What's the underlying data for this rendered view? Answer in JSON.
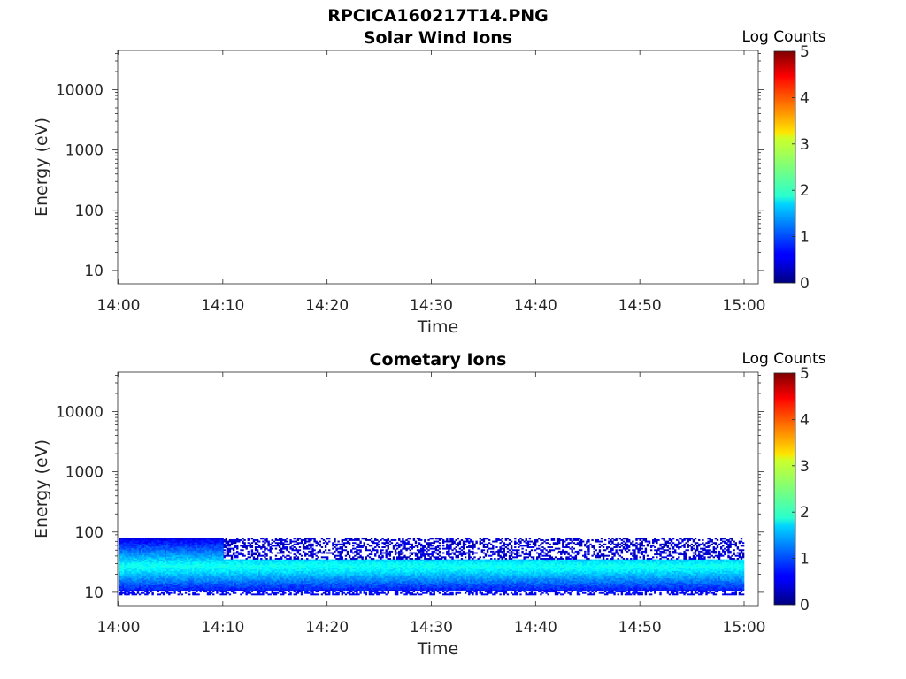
{
  "figure": {
    "title": "RPCICA160217T14.PNG"
  },
  "chart_data": [
    {
      "type": "heatmap",
      "title": "Solar Wind Ions",
      "xlabel": "Time",
      "ylabel": "Energy (eV)",
      "x_ticks": [
        "14:00",
        "14:10",
        "14:20",
        "14:30",
        "14:40",
        "14:50",
        "15:00"
      ],
      "xlim": [
        "14:00",
        "15:00"
      ],
      "y_scale": "log",
      "y_ticks": [
        10,
        100,
        1000,
        10000
      ],
      "y_tick_labels": [
        "10",
        "100",
        "1000",
        "10000"
      ],
      "ylim": [
        6,
        45000
      ],
      "colorbar": {
        "label": "Log Counts",
        "ticks": [
          "0",
          "1",
          "2",
          "3",
          "4",
          "5"
        ],
        "range": [
          0,
          5
        ],
        "colormap": "jet"
      },
      "data_description": "empty",
      "band": null
    },
    {
      "type": "heatmap",
      "title": "Cometary Ions",
      "xlabel": "Time",
      "ylabel": "Energy (eV)",
      "x_ticks": [
        "14:00",
        "14:10",
        "14:20",
        "14:30",
        "14:40",
        "14:50",
        "15:00"
      ],
      "xlim": [
        "14:00",
        "15:00"
      ],
      "y_scale": "log",
      "y_ticks": [
        10,
        100,
        1000,
        10000
      ],
      "y_tick_labels": [
        "10",
        "100",
        "1000",
        "10000"
      ],
      "ylim": [
        6,
        45000
      ],
      "colorbar": {
        "label": "Log Counts",
        "ticks": [
          "0",
          "1",
          "2",
          "3",
          "4",
          "5"
        ],
        "range": [
          0,
          5
        ],
        "colormap": "jet"
      },
      "band": {
        "time_start": "14:00",
        "time_end": "15:00",
        "energy_min_eV": 9,
        "energy_max_eV": 80,
        "peak_energy_eV": 27,
        "peak_log_counts": 2.0,
        "edge_log_counts": 0.2,
        "high_energy_upper_edge_eV_first_10min": 80,
        "high_energy_upper_edge_eV_after": 35
      }
    }
  ]
}
